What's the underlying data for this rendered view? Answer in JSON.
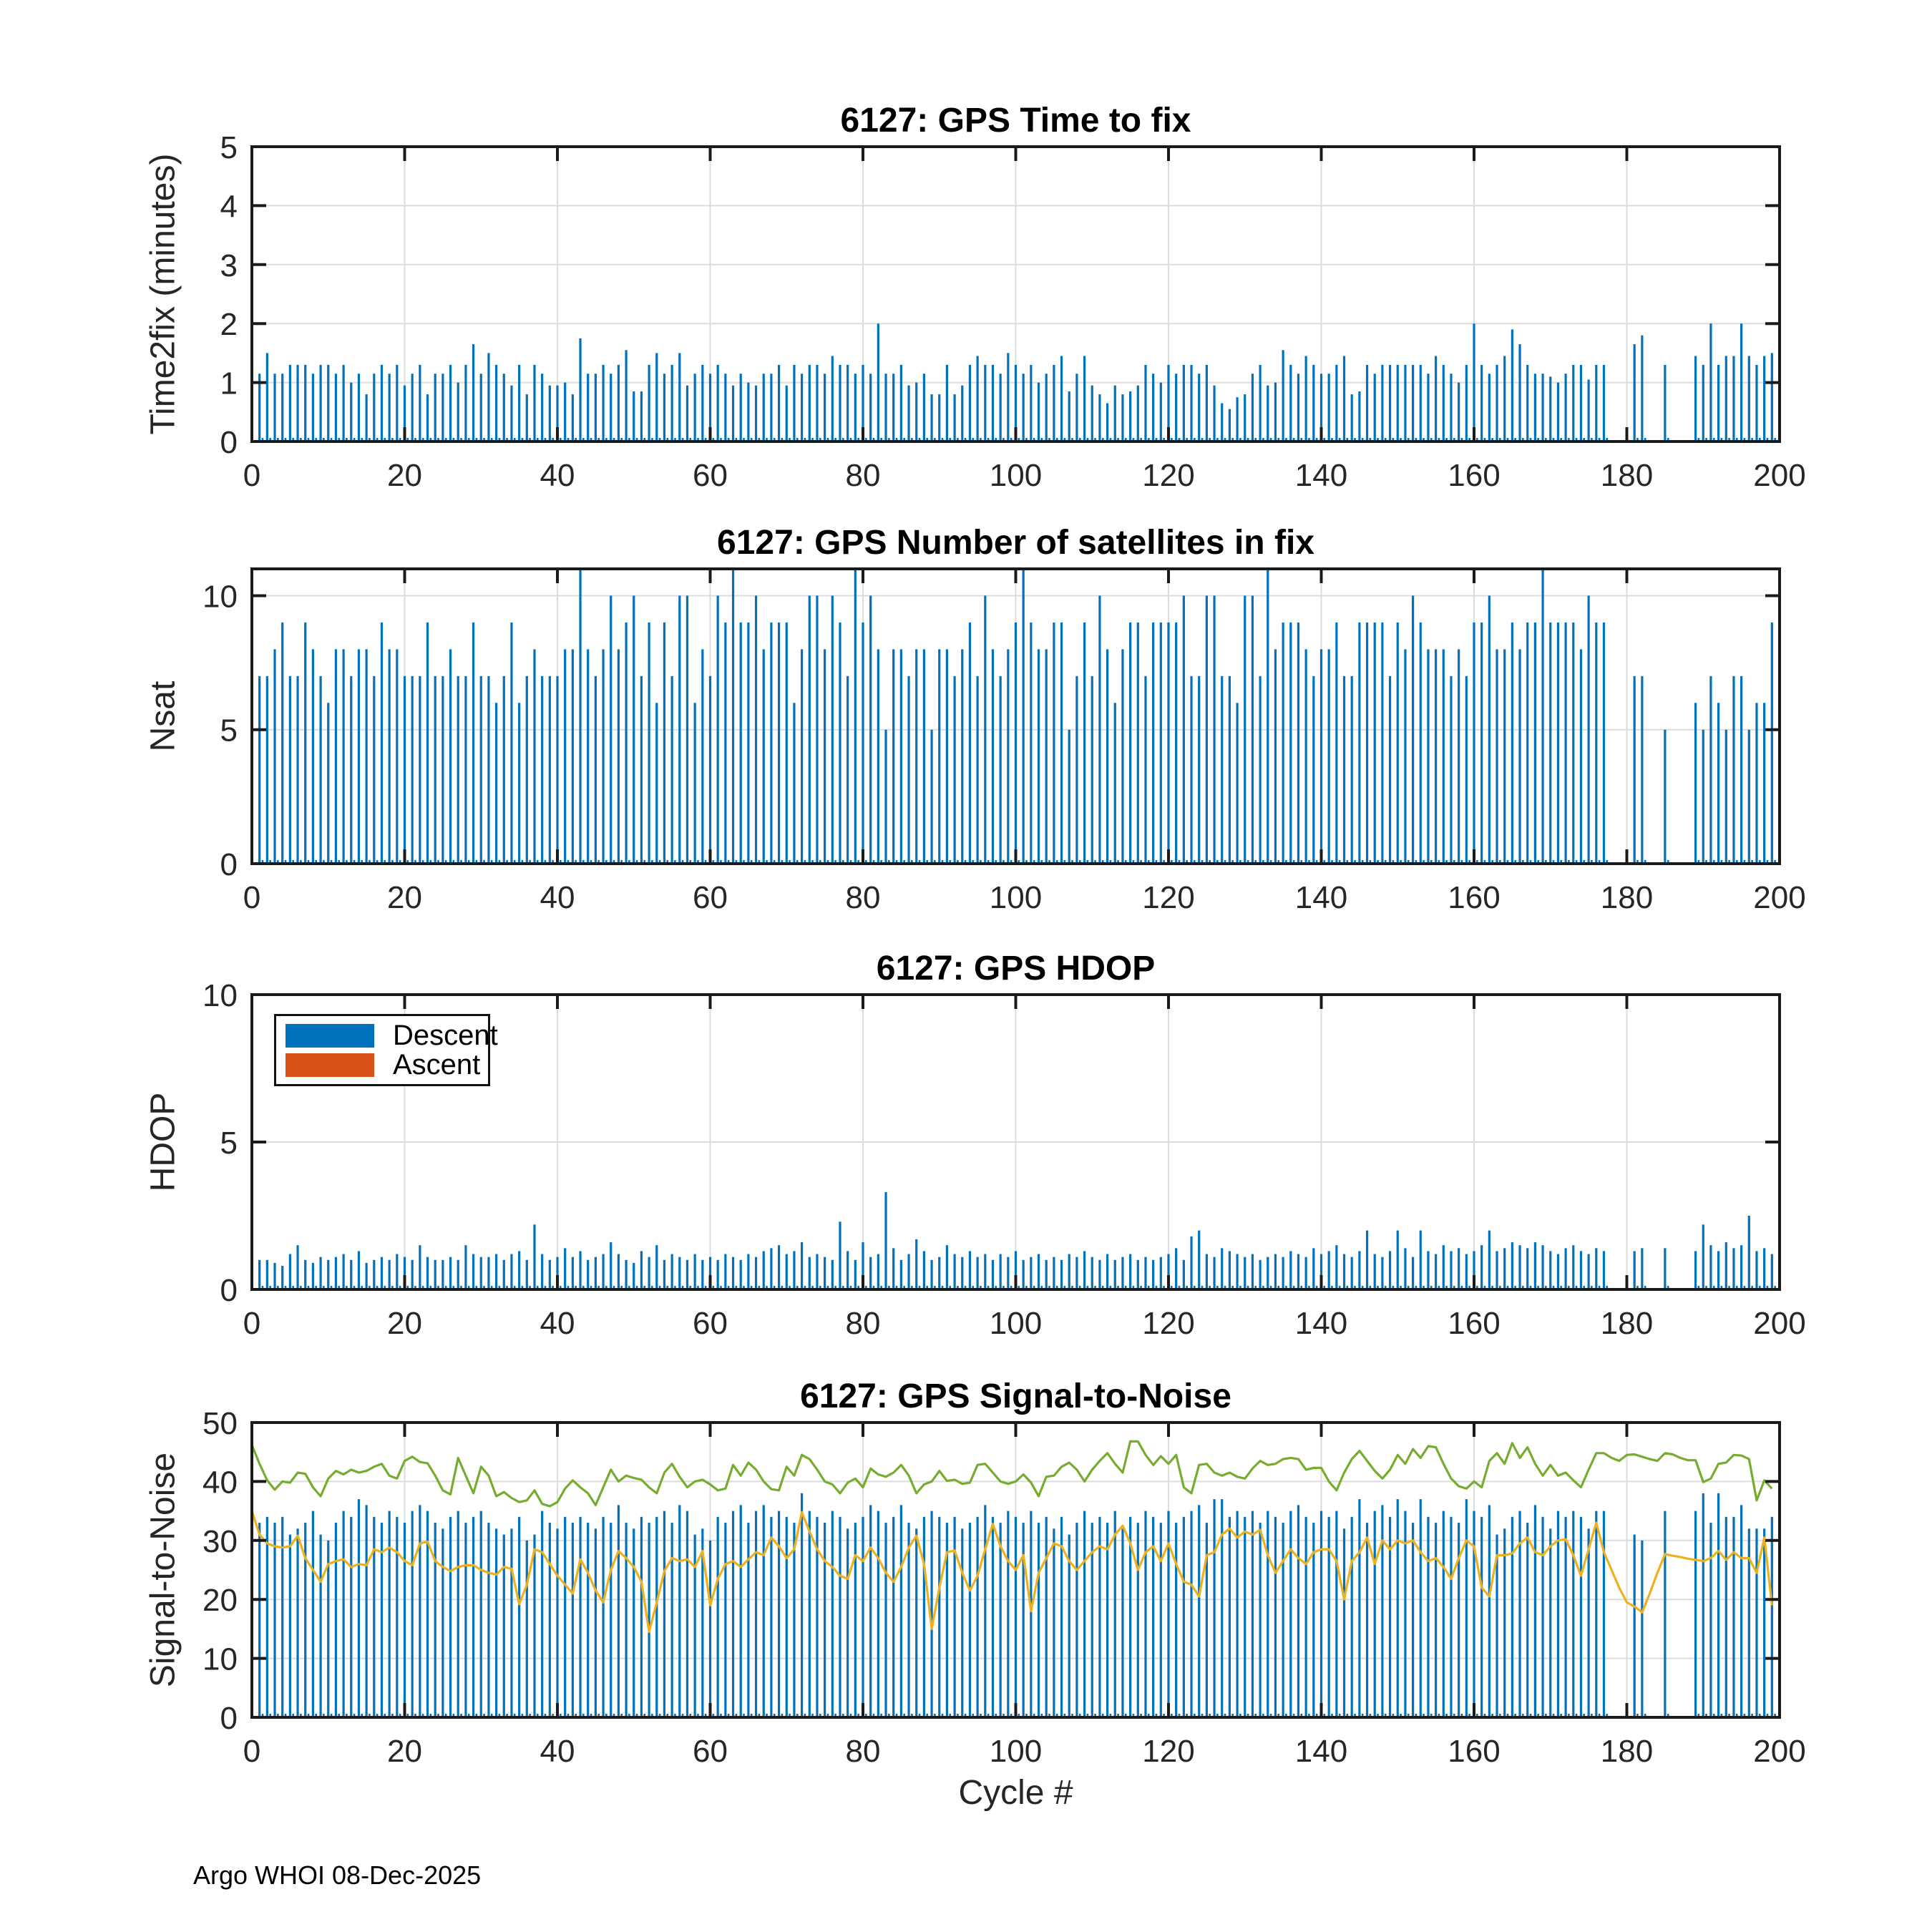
{
  "footer": "Argo WHOI 08-Dec-2025",
  "colors": {
    "bar_blue": "#0072BD",
    "ascent_orange": "#D95319",
    "line_green": "#77AC30",
    "line_yellow": "#EDB120",
    "axis": "#1a1a1a",
    "tick_text": "#262626",
    "grid": "#dcdcdc"
  },
  "legend": {
    "items": [
      {
        "label": "Descent",
        "color": "#0072BD"
      },
      {
        "label": "Ascent",
        "color": "#D95319"
      }
    ]
  },
  "chart_data": [
    {
      "type": "bar",
      "title": "6127: GPS Time to fix",
      "ylabel": "Time2fix (minutes)",
      "ylim": [
        0,
        5
      ],
      "yticks": [
        0,
        1,
        2,
        3,
        4,
        5
      ],
      "xlim": [
        0,
        200
      ],
      "xticks": [
        0,
        20,
        40,
        60,
        80,
        100,
        120,
        140,
        160,
        180,
        200
      ],
      "x_start": 1,
      "values": [
        1.15,
        1.5,
        1.15,
        1.15,
        1.3,
        1.3,
        1.3,
        1.15,
        1.3,
        1.3,
        1.15,
        1.3,
        1.0,
        1.15,
        0.8,
        1.15,
        1.3,
        1.15,
        1.3,
        0.95,
        1.15,
        1.3,
        0.8,
        1.15,
        1.15,
        1.3,
        1.0,
        1.3,
        1.65,
        1.15,
        1.5,
        1.3,
        1.15,
        0.95,
        1.3,
        0.8,
        1.3,
        1.15,
        0.95,
        0.95,
        1.0,
        0.8,
        1.75,
        1.15,
        1.15,
        1.3,
        1.15,
        1.3,
        1.55,
        0.85,
        0.85,
        1.3,
        1.5,
        1.15,
        1.3,
        1.5,
        0.95,
        1.15,
        1.3,
        1.15,
        1.3,
        1.15,
        0.95,
        1.15,
        1.0,
        0.95,
        1.15,
        1.15,
        1.3,
        0.95,
        1.3,
        1.15,
        1.3,
        1.3,
        1.15,
        1.45,
        1.3,
        1.3,
        1.15,
        1.3,
        1.15,
        2.0,
        1.15,
        1.15,
        1.3,
        0.95,
        1.0,
        1.15,
        0.8,
        0.8,
        1.3,
        0.8,
        0.95,
        1.3,
        1.45,
        1.3,
        1.3,
        1.15,
        1.5,
        1.3,
        1.15,
        1.3,
        1.0,
        1.15,
        1.3,
        1.45,
        0.85,
        1.15,
        1.45,
        0.95,
        0.8,
        0.65,
        0.95,
        0.8,
        0.85,
        0.95,
        1.3,
        1.15,
        1.0,
        1.3,
        1.15,
        1.3,
        1.3,
        1.15,
        1.3,
        0.95,
        0.65,
        0.55,
        0.75,
        0.8,
        1.15,
        1.3,
        0.95,
        1.0,
        1.55,
        1.3,
        1.15,
        1.45,
        1.3,
        1.15,
        1.15,
        1.3,
        1.45,
        0.8,
        0.85,
        1.3,
        1.15,
        1.3,
        1.3,
        1.3,
        1.3,
        1.3,
        1.3,
        1.15,
        1.45,
        1.3,
        1.15,
        1.0,
        1.3,
        2.0,
        1.3,
        1.15,
        1.3,
        1.45,
        1.9,
        1.65,
        1.3,
        1.15,
        1.15,
        1.1,
        1.0,
        1.15,
        1.3,
        1.3,
        1.05,
        1.3,
        1.3,
        null,
        null,
        null,
        1.65,
        1.8,
        null,
        null,
        1.3,
        null,
        null,
        null,
        1.45,
        1.3,
        2.0,
        1.3,
        1.45,
        1.45,
        2.0,
        1.45,
        1.3,
        1.45,
        1.5
      ]
    },
    {
      "type": "bar",
      "title": "6127: GPS Number of satellites in fix",
      "ylabel": "Nsat",
      "ylim": [
        0,
        11
      ],
      "yticks": [
        0,
        5,
        10
      ],
      "xlim": [
        0,
        200
      ],
      "xticks": [
        0,
        20,
        40,
        60,
        80,
        100,
        120,
        140,
        160,
        180,
        200
      ],
      "x_start": 1,
      "values": [
        7,
        7,
        8,
        9,
        7,
        7,
        9,
        8,
        7,
        6,
        8,
        8,
        7,
        8,
        8,
        7,
        9,
        8,
        8,
        7,
        7,
        7,
        9,
        7,
        7,
        8,
        7,
        7,
        9,
        7,
        7,
        6,
        7,
        9,
        6,
        7,
        8,
        7,
        7,
        7,
        8,
        8,
        11,
        8,
        7,
        8,
        10,
        8,
        9,
        10,
        7,
        9,
        6,
        9,
        7,
        10,
        10,
        6,
        8,
        7,
        10,
        9,
        11,
        9,
        9,
        10,
        8,
        9,
        9,
        9,
        6,
        8,
        10,
        10,
        8,
        10,
        9,
        7,
        11,
        9,
        10,
        8,
        5,
        8,
        8,
        7,
        8,
        8,
        5,
        8,
        8,
        7,
        8,
        9,
        7,
        10,
        8,
        7,
        8,
        9,
        11,
        9,
        8,
        8,
        9,
        9,
        5,
        7,
        9,
        7,
        10,
        8,
        6,
        8,
        9,
        9,
        7,
        9,
        9,
        9,
        9,
        10,
        7,
        7,
        10,
        10,
        7,
        7,
        6,
        10,
        10,
        7,
        11,
        8,
        9,
        9,
        9,
        8,
        7,
        8,
        8,
        9,
        7,
        7,
        9,
        9,
        9,
        9,
        7,
        9,
        8,
        10,
        9,
        8,
        8,
        8,
        7,
        8,
        7,
        9,
        9,
        10,
        8,
        8,
        9,
        8,
        9,
        9,
        11,
        9,
        9,
        9,
        9,
        8,
        10,
        9,
        9,
        null,
        null,
        null,
        7,
        7,
        null,
        null,
        5,
        null,
        null,
        null,
        6,
        5,
        7,
        6,
        5,
        7,
        7,
        5,
        6,
        6,
        9
      ]
    },
    {
      "type": "bar",
      "title": "6127: GPS HDOP",
      "ylabel": "HDOP",
      "ylim": [
        0,
        10
      ],
      "yticks": [
        0,
        5,
        10
      ],
      "xlim": [
        0,
        200
      ],
      "xticks": [
        0,
        20,
        40,
        60,
        80,
        100,
        120,
        140,
        160,
        180,
        200
      ],
      "x_start": 1,
      "has_legend": true,
      "values": [
        1.0,
        1.0,
        0.9,
        0.8,
        1.2,
        1.5,
        1.0,
        0.9,
        1.1,
        1.0,
        1.1,
        1.2,
        1.0,
        1.3,
        0.9,
        1.0,
        1.1,
        1.0,
        1.2,
        1.1,
        1.0,
        1.5,
        1.1,
        1.0,
        1.0,
        1.1,
        1.0,
        1.5,
        1.2,
        1.1,
        1.1,
        1.2,
        1.0,
        1.2,
        1.3,
        1.0,
        2.2,
        1.2,
        1.0,
        1.1,
        1.4,
        1.1,
        1.3,
        1.0,
        1.1,
        1.2,
        1.6,
        1.2,
        1.0,
        0.9,
        1.3,
        1.1,
        1.5,
        1.0,
        1.2,
        1.1,
        1.0,
        1.2,
        1.0,
        1.1,
        1.0,
        1.2,
        1.1,
        1.0,
        1.2,
        1.1,
        1.3,
        1.4,
        1.5,
        1.2,
        1.3,
        1.6,
        1.1,
        1.2,
        1.1,
        1.0,
        2.3,
        1.3,
        1.0,
        1.6,
        1.1,
        1.2,
        3.3,
        1.4,
        1.0,
        1.2,
        1.7,
        1.3,
        1.0,
        1.1,
        1.5,
        1.2,
        1.1,
        1.3,
        1.1,
        1.2,
        1.0,
        1.2,
        1.1,
        1.3,
        1.0,
        1.1,
        1.2,
        1.0,
        1.1,
        1.0,
        1.2,
        1.1,
        1.3,
        1.1,
        1.0,
        1.2,
        1.0,
        1.1,
        1.2,
        1.0,
        1.1,
        1.0,
        1.1,
        1.2,
        1.4,
        1.0,
        1.8,
        2.0,
        1.2,
        1.1,
        1.4,
        1.3,
        1.2,
        1.1,
        1.2,
        1.0,
        1.1,
        1.2,
        1.1,
        1.3,
        1.2,
        1.1,
        1.4,
        1.2,
        1.3,
        1.5,
        1.2,
        1.1,
        1.3,
        2.0,
        1.2,
        1.1,
        1.3,
        2.0,
        1.4,
        1.1,
        2.0,
        1.3,
        1.2,
        1.5,
        1.3,
        1.4,
        1.2,
        1.3,
        1.5,
        2.0,
        1.3,
        1.4,
        1.6,
        1.5,
        1.4,
        1.6,
        1.5,
        1.3,
        1.2,
        1.4,
        1.5,
        1.3,
        1.2,
        1.4,
        1.3,
        null,
        null,
        null,
        1.3,
        1.4,
        null,
        null,
        1.4,
        null,
        null,
        null,
        1.3,
        2.2,
        1.5,
        1.3,
        1.6,
        1.4,
        1.5,
        2.5,
        1.3,
        1.4,
        1.2
      ]
    },
    {
      "type": "bar+line",
      "title": "6127: GPS Signal-to-Noise",
      "ylabel": "Signal-to-Noise",
      "xlabel": "Cycle #",
      "ylim": [
        0,
        50
      ],
      "yticks": [
        0,
        10,
        20,
        30,
        40,
        50
      ],
      "xlim": [
        0,
        200
      ],
      "xticks": [
        0,
        20,
        40,
        60,
        80,
        100,
        120,
        140,
        160,
        180,
        200
      ],
      "x_start": 1,
      "values": [
        33,
        34,
        33,
        34,
        31,
        32,
        33,
        35,
        31,
        30,
        33,
        35,
        34,
        37,
        36,
        34,
        33,
        35,
        34,
        33,
        35,
        36,
        35,
        33,
        32,
        34,
        35,
        33,
        34,
        35,
        33,
        32,
        31,
        32,
        34,
        30,
        31,
        35,
        33,
        32,
        34,
        33,
        34,
        33,
        32,
        34,
        33,
        36,
        33,
        32,
        34,
        33,
        34,
        35,
        33,
        36,
        35,
        31,
        32,
        30,
        34,
        33,
        35,
        36,
        33,
        35,
        36,
        34,
        35,
        34,
        33,
        38,
        35,
        34,
        33,
        35,
        34,
        32,
        33,
        34,
        36,
        35,
        33,
        34,
        36,
        33,
        32,
        34,
        35,
        34,
        33,
        34,
        32,
        33,
        34,
        36,
        34,
        33,
        35,
        34,
        33,
        35,
        33,
        34,
        32,
        34,
        31,
        33,
        35,
        33,
        34,
        33,
        35,
        32,
        34,
        33,
        35,
        34,
        33,
        35,
        33,
        34,
        35,
        36,
        33,
        37,
        37,
        34,
        35,
        34,
        35,
        33,
        35,
        34,
        33,
        35,
        36,
        34,
        33,
        35,
        34,
        35,
        32,
        34,
        37,
        33,
        35,
        36,
        34,
        37,
        35,
        33,
        37,
        34,
        33,
        35,
        34,
        33,
        37,
        35,
        34,
        36,
        31,
        32,
        34,
        35,
        33,
        36,
        34,
        32,
        35,
        34,
        35,
        34,
        32,
        35,
        35,
        null,
        null,
        null,
        31,
        30,
        null,
        null,
        35,
        null,
        null,
        null,
        35,
        38,
        33,
        38,
        34,
        34,
        36,
        32,
        32,
        32,
        34
      ],
      "series": [
        {
          "name": "line-green",
          "color": "#77AC30",
          "x_start": 0,
          "values": [
            46.2,
            43.0,
            40.2,
            38.6,
            40.0,
            39.8,
            41.5,
            41.3,
            39.0,
            37.5,
            40.5,
            41.8,
            41.2,
            42.0,
            41.5,
            41.8,
            42.5,
            43.0,
            41.0,
            40.5,
            43.5,
            44.2,
            43.3,
            43.1,
            41.0,
            38.5,
            37.8,
            44.0,
            41.0,
            38.0,
            42.5,
            41.0,
            37.5,
            38.2,
            37.2,
            36.5,
            36.8,
            38.5,
            36.2,
            35.8,
            36.5,
            38.8,
            40.2,
            39.0,
            38.0,
            36.0,
            39.0,
            42.0,
            40.0,
            41.0,
            40.6,
            40.3,
            39.0,
            38.0,
            41.5,
            43.0,
            40.8,
            39.0,
            40.0,
            40.3,
            39.5,
            38.5,
            38.8,
            42.8,
            41.0,
            43.2,
            42.0,
            40.0,
            38.7,
            38.5,
            42.5,
            41.0,
            44.5,
            43.8,
            42.0,
            40.0,
            39.5,
            38.0,
            39.8,
            40.5,
            39.0,
            42.2,
            41.2,
            40.8,
            41.5,
            42.8,
            41.0,
            38.0,
            39.5,
            40.0,
            41.8,
            40.1,
            40.3,
            39.6,
            39.8,
            42.8,
            43.0,
            41.5,
            40.0,
            39.6,
            40.0,
            41.2,
            39.8,
            37.5,
            40.8,
            41.0,
            42.5,
            43.2,
            42.0,
            40.0,
            42.0,
            43.5,
            44.8,
            43.0,
            41.5,
            46.8,
            46.8,
            44.5,
            42.8,
            44.3,
            43.0,
            44.5,
            39.0,
            38.0,
            42.8,
            43.0,
            41.5,
            41.0,
            41.5,
            40.8,
            40.5,
            42.2,
            43.5,
            42.8,
            43.0,
            43.8,
            44.0,
            43.8,
            42.0,
            42.3,
            42.3,
            40.0,
            38.5,
            41.5,
            43.8,
            45.2,
            43.5,
            41.8,
            40.5,
            42.0,
            44.5,
            43.0,
            45.5,
            44.0,
            46.0,
            45.8,
            43.0,
            40.5,
            39.2,
            38.8,
            40.0,
            39.0,
            43.5,
            44.8,
            43.0,
            46.5,
            44.0,
            45.8,
            43.0,
            41.0,
            42.8,
            41.0,
            41.5,
            40.2,
            39.0,
            42.0,
            44.8,
            44.8,
            44.0,
            43.5,
            44.5,
            44.6,
            44.2,
            43.8,
            43.5,
            44.8,
            44.6,
            44.0,
            43.6,
            43.6,
            39.9,
            40.5,
            43.0,
            43.2,
            44.5,
            44.4,
            43.8,
            36.8,
            40.2,
            38.8
          ]
        },
        {
          "name": "line-yellow",
          "color": "#EDB120",
          "x_start": 0,
          "values": [
            35.0,
            31.0,
            29.5,
            29.0,
            28.8,
            29.0,
            30.8,
            27.0,
            25.0,
            23.0,
            26.0,
            26.5,
            26.8,
            25.5,
            26.0,
            25.8,
            28.5,
            28.0,
            28.8,
            28.0,
            26.5,
            25.8,
            29.5,
            29.8,
            26.5,
            25.5,
            24.8,
            25.5,
            25.8,
            25.8,
            25.0,
            24.5,
            24.2,
            25.5,
            25.2,
            19.2,
            22.5,
            28.5,
            28.0,
            26.0,
            24.0,
            22.5,
            21.0,
            26.8,
            24.5,
            21.5,
            19.5,
            25.0,
            28.2,
            27.0,
            25.5,
            23.0,
            14.5,
            19.5,
            24.8,
            27.0,
            26.5,
            26.8,
            25.5,
            28.2,
            19.0,
            23.5,
            26.0,
            26.5,
            25.5,
            26.8,
            28.0,
            27.5,
            30.5,
            29.0,
            27.0,
            28.5,
            34.8,
            31.5,
            28.5,
            26.5,
            25.5,
            24.0,
            23.5,
            27.5,
            26.5,
            28.8,
            27.0,
            24.5,
            23.0,
            25.5,
            28.8,
            30.8,
            26.0,
            15.0,
            22.0,
            28.0,
            28.3,
            24.5,
            21.5,
            24.0,
            28.5,
            32.8,
            29.0,
            26.5,
            25.0,
            27.5,
            18.0,
            24.5,
            27.0,
            29.5,
            29.0,
            26.5,
            25.0,
            26.5,
            28.0,
            29.0,
            28.5,
            31.0,
            32.5,
            29.5,
            25.0,
            28.0,
            29.0,
            26.5,
            29.5,
            26.0,
            23.0,
            22.5,
            20.5,
            27.5,
            28.0,
            31.0,
            32.0,
            30.5,
            31.5,
            31.0,
            31.8,
            27.5,
            24.5,
            26.5,
            28.5,
            27.0,
            26.0,
            28.0,
            28.5,
            28.5,
            26.5,
            20.0,
            26.5,
            28.0,
            30.5,
            26.0,
            30.0,
            28.5,
            30.0,
            29.5,
            30.0,
            28.0,
            26.5,
            27.0,
            25.5,
            23.5,
            27.0,
            30.0,
            29.0,
            22.0,
            20.5,
            27.5,
            27.5,
            27.8,
            29.5,
            30.5,
            28.0,
            27.5,
            29.0,
            30.0,
            30.2,
            27.5,
            24.0,
            28.5,
            33.0,
            28.0,
            25.0,
            22.0,
            19.5,
            18.8,
            17.8,
            21.0,
            24.5,
            27.7,
            27.4,
            27.2,
            26.9,
            26.7,
            26.5,
            27.0,
            28.2,
            26.7,
            28.0,
            27.0,
            27.0,
            24.5,
            30.5,
            19.0
          ]
        }
      ]
    }
  ]
}
